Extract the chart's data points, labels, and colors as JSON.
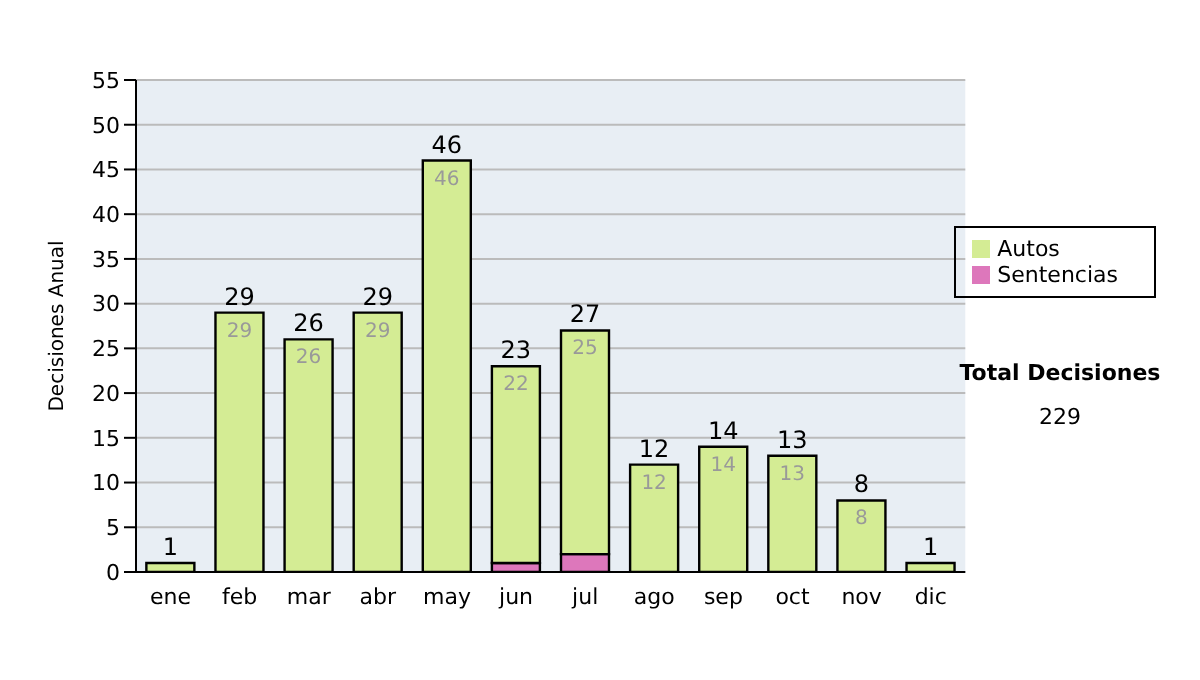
{
  "chart_data": {
    "type": "bar",
    "stacked": true,
    "ylabel": "Decisiones Anual",
    "categories": [
      "ene",
      "feb",
      "mar",
      "abr",
      "may",
      "jun",
      "jul",
      "ago",
      "sep",
      "oct",
      "nov",
      "dic"
    ],
    "series": [
      {
        "name": "Sentencias",
        "color": "#dd77bb",
        "values": [
          0,
          0,
          0,
          0,
          0,
          1,
          2,
          0,
          0,
          0,
          0,
          0
        ]
      },
      {
        "name": "Autos",
        "color": "#d4ec94",
        "values": [
          1,
          29,
          26,
          29,
          46,
          22,
          25,
          12,
          14,
          13,
          8,
          1
        ],
        "value_labels": [
          null,
          "29",
          "26",
          "29",
          "46",
          "22",
          "25",
          "12",
          "14",
          "13",
          "8",
          null
        ]
      }
    ],
    "totals": [
      "1",
      "29",
      "26",
      "29",
      "46",
      "23",
      "27",
      "12",
      "14",
      "13",
      "8",
      "1"
    ],
    "ylim": [
      0,
      55
    ],
    "yticks": [
      0,
      5,
      10,
      15,
      20,
      25,
      30,
      35,
      40,
      45,
      50,
      55
    ],
    "grid": "y",
    "legend": "right",
    "annotations": [
      "Total Decisiones",
      "229"
    ]
  }
}
